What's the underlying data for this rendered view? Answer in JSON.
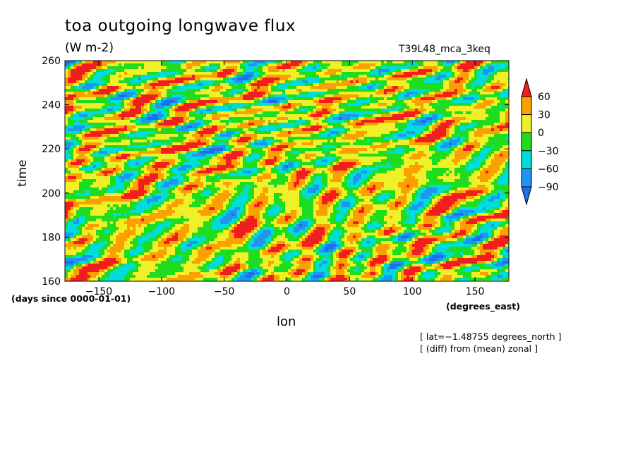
{
  "chart_data": {
    "type": "heatmap",
    "title": "toa outgoing longwave flux",
    "units": "(W m-2)",
    "experiment": "T39L48_mca_3keq",
    "xlabel": "lon",
    "ylabel": "time",
    "x_units": "(degrees_east)",
    "y_units": "(days since 0000-01-01)",
    "xlim": [
      -177,
      177
    ],
    "ylim": [
      160,
      260
    ],
    "x_ticks": [
      -150,
      -100,
      -50,
      0,
      50,
      100,
      150
    ],
    "x_tick_labels": [
      "−150",
      "−100",
      "−50",
      "0",
      "50",
      "100",
      "150"
    ],
    "y_ticks": [
      160,
      180,
      200,
      220,
      240,
      260
    ],
    "y_tick_labels": [
      "160",
      "180",
      "200",
      "220",
      "240",
      "260"
    ],
    "colorbar": {
      "levels": [
        -90,
        -60,
        -30,
        0,
        30,
        60
      ],
      "labels": [
        "−90",
        "−60",
        "−30",
        "0",
        "30",
        "60"
      ],
      "colors": [
        "#1e6eeb",
        "#1e96f0",
        "#00dcdc",
        "#1edc1e",
        "#f0f028",
        "#faa000",
        "#f01e1e"
      ]
    },
    "annotations": [
      "[ lat=−1.48755 degrees_north ]",
      "[ (diff) from (mean) zonal ]"
    ]
  }
}
